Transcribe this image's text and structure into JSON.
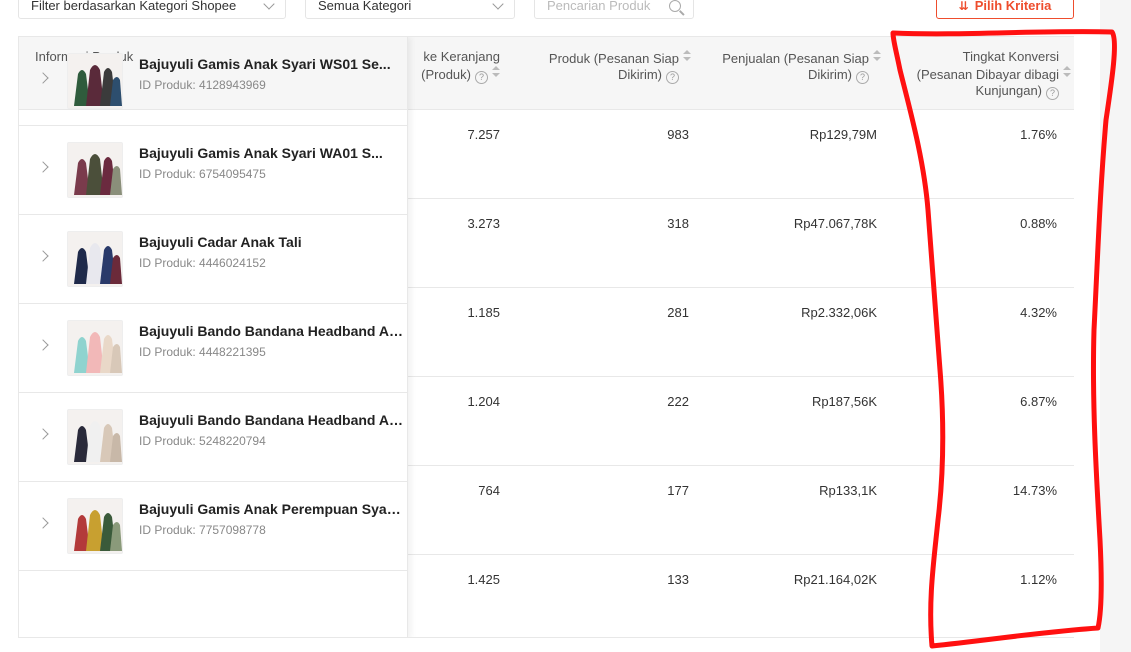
{
  "filters": {
    "category_shopee": "Filter berdasarkan Kategori Shopee",
    "category": "Semua Kategori",
    "search_placeholder": "Pencarian Produk"
  },
  "criteria_button": "Pilih Kriteria",
  "columns": {
    "product_info": "Informasi Produk",
    "cart_line1": "ke Keranjang",
    "cart_line2": "(Produk)",
    "orders_line1": "Produk (Pesanan Siap",
    "orders_line2": "Dikirim)",
    "sales_line1": "Penjualan (Pesanan Siap",
    "sales_line2": "Dikirim)",
    "conv_line1": "Tingkat Konversi",
    "conv_line2": "(Pesanan Dibayar dibagi",
    "conv_line3": "Kunjungan)"
  },
  "rows": [
    {
      "name": "Bajuyuli Gamis Anak Syari WS01 Se...",
      "id": "ID Produk: 4128943969",
      "cart": "7.257",
      "orders": "983",
      "sales": "Rp129,79M",
      "conv": "1.76%",
      "colors": [
        "#2f5b3c",
        "#5a2a3a",
        "#3b3b3b",
        "#2d4e6e"
      ]
    },
    {
      "name": "Bajuyuli Gamis Anak Syari WA01 S...",
      "id": "ID Produk: 6754095475",
      "cart": "3.273",
      "orders": "318",
      "sales": "Rp47.067,78K",
      "conv": "0.88%",
      "colors": [
        "#7a3b4c",
        "#4b4f3a",
        "#6b2a3f",
        "#8a8f7a"
      ]
    },
    {
      "name": "Bajuyuli Cadar Anak Tali",
      "id": "ID Produk: 4446024152",
      "cart": "1.185",
      "orders": "281",
      "sales": "Rp2.332,06K",
      "conv": "4.32%",
      "colors": [
        "#1f2a4a",
        "#e8e8ee",
        "#2a3a6a",
        "#6b2a3a"
      ]
    },
    {
      "name": "Bajuyuli Bando Bandana Headband An...",
      "id": "ID Produk: 4448221395",
      "cart": "1.204",
      "orders": "222",
      "sales": "Rp187,56K",
      "conv": "6.87%",
      "colors": [
        "#8fd3cf",
        "#f2b8b8",
        "#e9d8c8",
        "#d8c8b8"
      ]
    },
    {
      "name": "Bajuyuli Bando Bandana Headband Ana...",
      "id": "ID Produk: 5248220794",
      "cart": "764",
      "orders": "177",
      "sales": "Rp133,1K",
      "conv": "14.73%",
      "colors": [
        "#2a2a3a",
        "#f0f0f0",
        "#d8c8b8",
        "#c8b8a8"
      ]
    },
    {
      "name": "Bajuyuli Gamis Anak Perempuan Syari ...",
      "id": "ID Produk: 7757098778",
      "cart": "1.425",
      "orders": "133",
      "sales": "Rp21.164,02K",
      "conv": "1.12%",
      "colors": [
        "#b33a3a",
        "#c8a030",
        "#3a5a3a",
        "#8a9a7a"
      ]
    }
  ]
}
